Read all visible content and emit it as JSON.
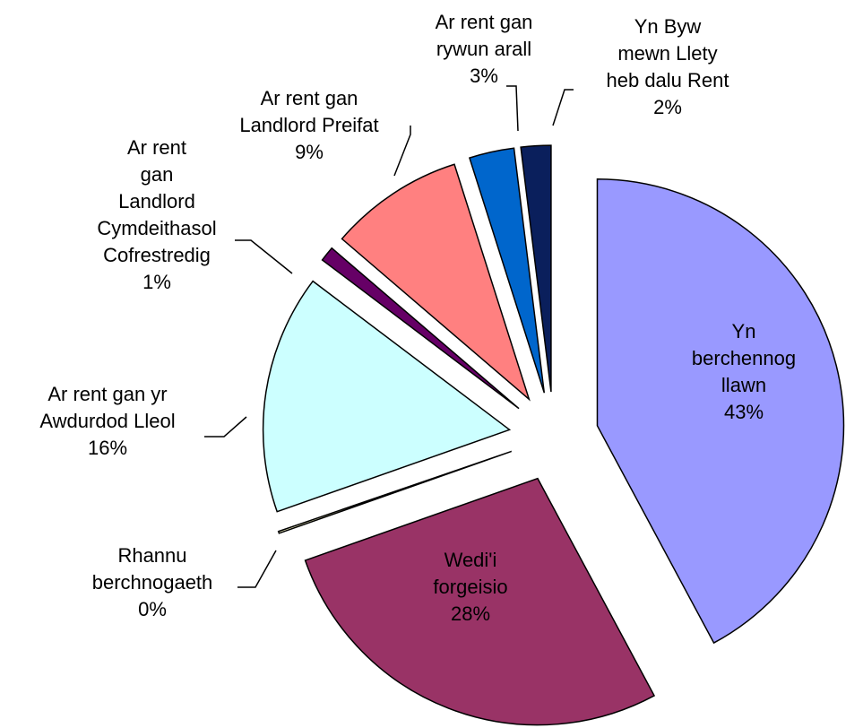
{
  "chart_data": {
    "type": "pie",
    "categories": [
      "Yn berchennog\nllawn",
      "Wedi'i\nforgeisio",
      "Rhannu\nberchnogaeth",
      "Ar rent gan yr\nAwdurdod Lleol",
      "Ar rent\ngan\nLandlord\nCymdeithasol\nCofrestredig",
      "Ar rent gan\nLandlord Preifat",
      "Ar rent gan\nrywun arall",
      "Yn Byw\nmewn Llety\nheb dalu Rent"
    ],
    "values": [
      43,
      28,
      0,
      16,
      1,
      9,
      3,
      2
    ],
    "value_labels": [
      "43%",
      "28%",
      "0%",
      "16%",
      "1%",
      "9%",
      "3%",
      "2%"
    ],
    "colors": [
      "#9999ff",
      "#993366",
      "#ffffcc",
      "#ccffff",
      "#660066",
      "#ff8080",
      "#0066cc",
      "#0a1f5c"
    ]
  }
}
